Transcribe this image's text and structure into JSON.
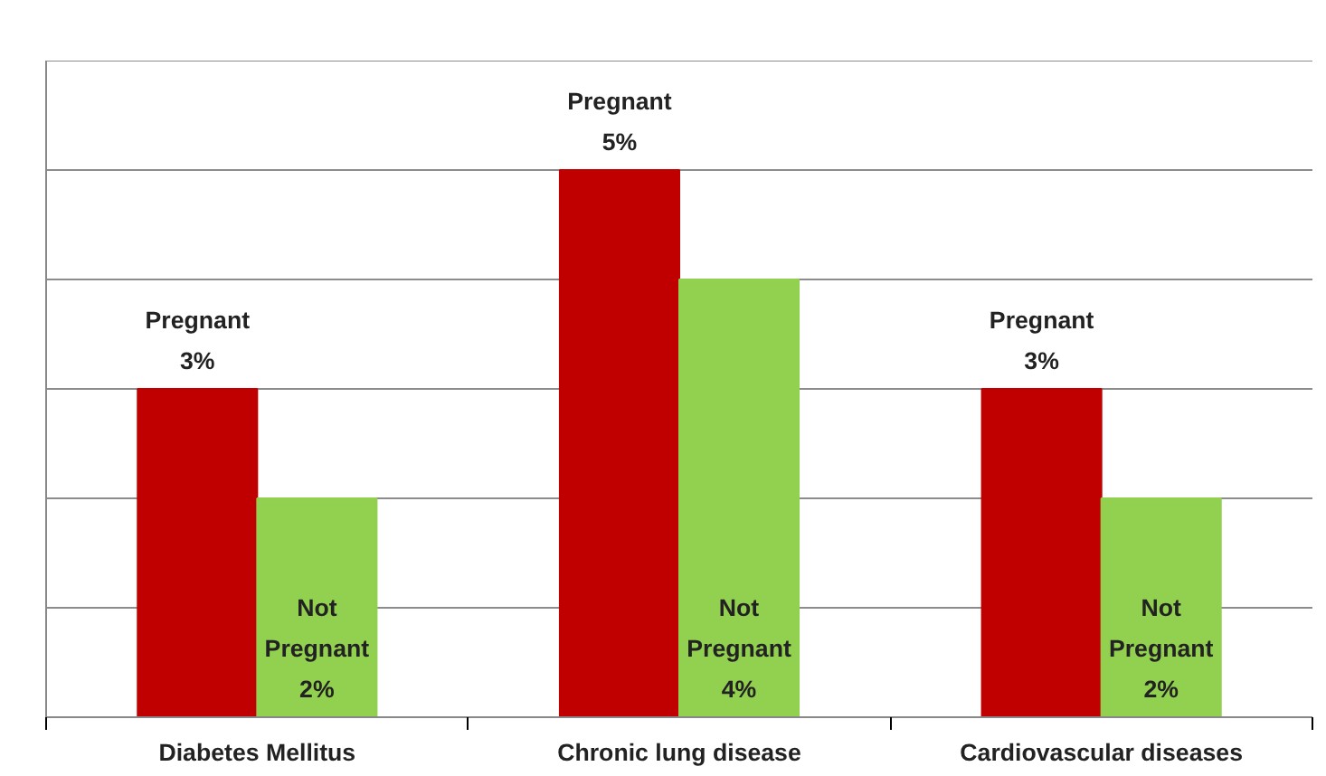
{
  "chart_data": {
    "type": "bar",
    "categories": [
      "Diabetes Mellitus",
      "Chronic lung disease",
      "Cardiovascular diseases"
    ],
    "series": [
      {
        "name": "Pregnant",
        "color": "#c00000",
        "values": [
          3,
          5,
          3
        ],
        "value_labels": [
          "3%",
          "5%",
          "3%"
        ]
      },
      {
        "name": "Not Pregnant",
        "color": "#92d050",
        "values": [
          2,
          4,
          2
        ],
        "value_labels": [
          "2%",
          "4%",
          "2%"
        ]
      }
    ],
    "ylim": [
      0,
      6
    ],
    "yticks": [
      {
        "value": 0,
        "label": null
      },
      {
        "value": 1,
        "label": null
      },
      {
        "value": 2,
        "label": null
      },
      {
        "value": 3,
        "label": null
      },
      {
        "value": 4,
        "label": null
      },
      {
        "value": 5,
        "label": null
      },
      {
        "value": 6,
        "label": null
      }
    ],
    "grid": "y",
    "tick_labels": "x"
  }
}
